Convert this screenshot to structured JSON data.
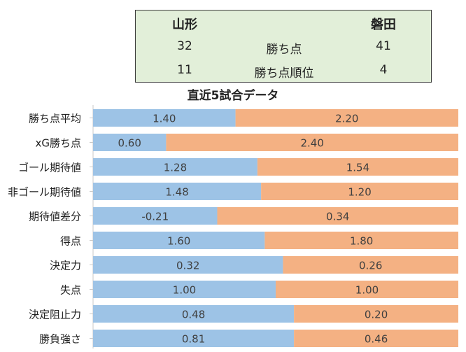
{
  "summary": {
    "home_team": "山形",
    "away_team": "磐田",
    "rows": [
      {
        "label": "勝ち点",
        "home": "32",
        "away": "41"
      },
      {
        "label": "勝ち点順位",
        "home": "11",
        "away": "4"
      }
    ]
  },
  "chart_data": {
    "type": "bar",
    "stacking": "percent",
    "orientation": "horizontal",
    "title": "直近5試合データ",
    "categories": [
      "勝ち点平均",
      "xG勝ち点",
      "ゴール期待値",
      "非ゴール期待値",
      "期待値差分",
      "得点",
      "決定力",
      "失点",
      "決定阻止力",
      "勝負強さ"
    ],
    "series": [
      {
        "name": "",
        "values": [
          1.4,
          0.6,
          1.28,
          1.48,
          -0.21,
          1.6,
          0.32,
          1.0,
          0.48,
          0.81
        ],
        "labels": [
          "1.40",
          "0.60",
          "1.28",
          "1.48",
          "-0.21",
          "1.60",
          "0.32",
          "1.00",
          "0.48",
          "0.81"
        ],
        "color": "#9dc3e6"
      },
      {
        "name": "",
        "values": [
          2.2,
          2.4,
          1.54,
          1.2,
          0.34,
          1.8,
          0.26,
          1.0,
          0.2,
          0.46
        ],
        "labels": [
          "2.20",
          "2.40",
          "1.54",
          "1.20",
          "0.34",
          "1.80",
          "0.26",
          "1.00",
          "0.20",
          "0.46"
        ],
        "color": "#f4b183"
      }
    ],
    "split_fraction": [
      0.39,
      0.2,
      0.45,
      0.46,
      0.34,
      0.47,
      0.52,
      0.5,
      0.55,
      0.55
    ]
  }
}
